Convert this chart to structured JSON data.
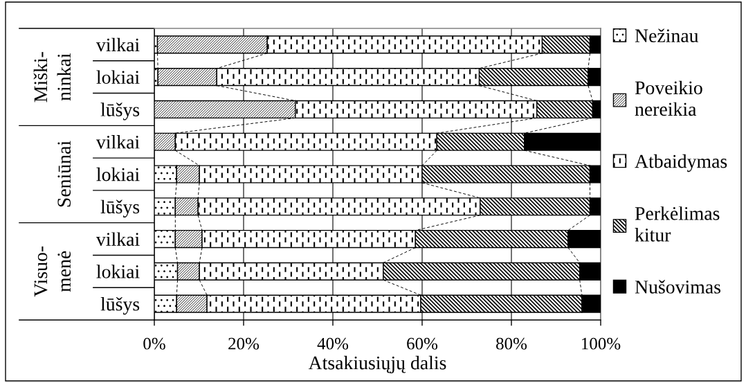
{
  "chart_data": {
    "type": "bar",
    "orientation": "horizontal",
    "stacked": true,
    "xlabel": "Atsakiusiųjų dalis",
    "categories": [
      "vilkai",
      "lokiai",
      "lūšys",
      "vilkai",
      "lokiai",
      "lūšys",
      "vilkai",
      "lokiai",
      "lūšys"
    ],
    "annotations": [
      "Miški-\nninkai",
      "Seniūnai",
      "Visuo-\nmenė"
    ],
    "xlim": [
      0,
      100
    ],
    "xticks": [
      {
        "value": 0,
        "label": "0%"
      },
      {
        "value": 20,
        "label": "20%"
      },
      {
        "value": 40,
        "label": "40%"
      },
      {
        "value": 60,
        "label": "60%"
      },
      {
        "value": 80,
        "label": "80%"
      },
      {
        "value": 100,
        "label": "100%"
      }
    ],
    "grid": "x",
    "legend": "right",
    "series": [
      {
        "name": "Nežinau",
        "color": "#000000",
        "values": [
          0.7,
          0.8,
          0,
          0,
          5.0,
          4.7,
          4.7,
          5.2,
          5.0
        ]
      },
      {
        "name": "Poveikio\nnereikia",
        "color": "#000000",
        "values": [
          24.6,
          13.2,
          31.6,
          4.7,
          5.1,
          5.1,
          6.0,
          4.9,
          6.8
        ]
      },
      {
        "name": "Atbaidymas",
        "color": "#000000",
        "values": [
          61.6,
          58.8,
          54.1,
          58.6,
          49.9,
          63.2,
          47.8,
          41.2,
          47.9
        ]
      },
      {
        "name": "Perkėlimas\nkitur",
        "color": "#000000",
        "values": [
          10.7,
          24.4,
          12.5,
          19.6,
          37.6,
          24.6,
          34.2,
          44.0,
          36.1
        ]
      },
      {
        "name": "Nušovimas",
        "color": "#000000",
        "values": [
          2.4,
          2.8,
          1.8,
          17.1,
          2.4,
          2.4,
          7.3,
          4.7,
          4.2
        ]
      }
    ]
  }
}
